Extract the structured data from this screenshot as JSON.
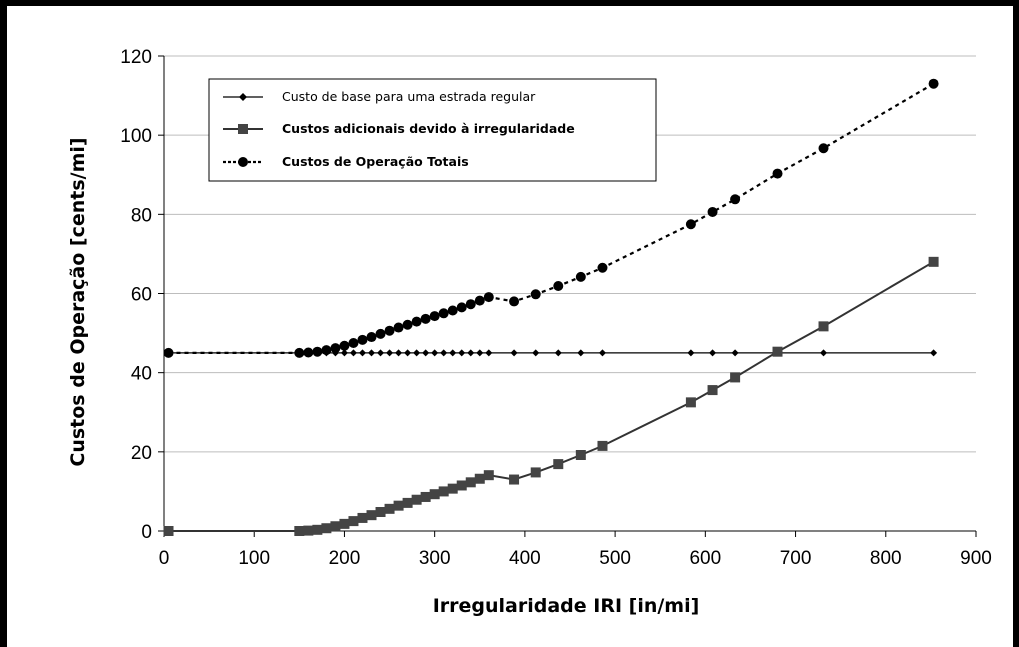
{
  "chart_data": {
    "type": "line",
    "xlabel": "Irregularidade IRI [in/mi]",
    "ylabel": "Custos de Operação [cents/mi]",
    "xlim": [
      0,
      900
    ],
    "ylim": [
      0,
      120
    ],
    "xticks": [
      "0",
      "100",
      "200",
      "300",
      "400",
      "500",
      "600",
      "700",
      "800",
      "900"
    ],
    "yticks": [
      "0",
      "20",
      "40",
      "60",
      "80",
      "100",
      "120"
    ],
    "grid": "horizontal",
    "legend_position": "top-left",
    "series": [
      {
        "name": "Custo de base para uma estrada regular",
        "marker": "diamond",
        "line": "solid",
        "color": "#000000",
        "points": [
          [
            5,
            45
          ],
          [
            150,
            45
          ],
          [
            160,
            45
          ],
          [
            170,
            45
          ],
          [
            180,
            45
          ],
          [
            190,
            45
          ],
          [
            200,
            45
          ],
          [
            210,
            45
          ],
          [
            220,
            45
          ],
          [
            230,
            45
          ],
          [
            240,
            45
          ],
          [
            250,
            45
          ],
          [
            260,
            45
          ],
          [
            270,
            45
          ],
          [
            280,
            45
          ],
          [
            290,
            45
          ],
          [
            300,
            45
          ],
          [
            310,
            45
          ],
          [
            320,
            45
          ],
          [
            330,
            45
          ],
          [
            340,
            45
          ],
          [
            350,
            45
          ],
          [
            360,
            45
          ],
          [
            388,
            45
          ],
          [
            412,
            45
          ],
          [
            437,
            45
          ],
          [
            462,
            45
          ],
          [
            486,
            45
          ],
          [
            584,
            45
          ],
          [
            608,
            45
          ],
          [
            633,
            45
          ],
          [
            680,
            45
          ],
          [
            731,
            45
          ],
          [
            853,
            45
          ]
        ]
      },
      {
        "name": "Custos adicionais devido à irregularidade",
        "marker": "square",
        "line": "solid",
        "color": "#333333",
        "points": [
          [
            5,
            0
          ],
          [
            150,
            0
          ],
          [
            160,
            0.1
          ],
          [
            170,
            0.3
          ],
          [
            180,
            0.7
          ],
          [
            190,
            1.2
          ],
          [
            200,
            1.8
          ],
          [
            210,
            2.5
          ],
          [
            220,
            3.3
          ],
          [
            230,
            4.0
          ],
          [
            240,
            4.8
          ],
          [
            250,
            5.6
          ],
          [
            260,
            6.4
          ],
          [
            270,
            7.1
          ],
          [
            280,
            7.9
          ],
          [
            290,
            8.6
          ],
          [
            300,
            9.3
          ],
          [
            310,
            10.0
          ],
          [
            320,
            10.7
          ],
          [
            330,
            11.5
          ],
          [
            340,
            12.3
          ],
          [
            350,
            13.2
          ],
          [
            360,
            14.1
          ],
          [
            388,
            13.0
          ],
          [
            412,
            14.8
          ],
          [
            437,
            16.9
          ],
          [
            462,
            19.2
          ],
          [
            486,
            21.5
          ],
          [
            584,
            32.5
          ],
          [
            608,
            35.6
          ],
          [
            633,
            38.8
          ],
          [
            680,
            45.3
          ],
          [
            731,
            51.7
          ],
          [
            853,
            68.0
          ]
        ]
      },
      {
        "name": "Custos de Operação Totais",
        "marker": "circle",
        "line": "dotted",
        "color": "#000000",
        "points": [
          [
            5,
            45
          ],
          [
            150,
            45
          ],
          [
            160,
            45.1
          ],
          [
            170,
            45.3
          ],
          [
            180,
            45.7
          ],
          [
            190,
            46.2
          ],
          [
            200,
            46.8
          ],
          [
            210,
            47.5
          ],
          [
            220,
            48.3
          ],
          [
            230,
            49.0
          ],
          [
            240,
            49.8
          ],
          [
            250,
            50.6
          ],
          [
            260,
            51.4
          ],
          [
            270,
            52.1
          ],
          [
            280,
            52.9
          ],
          [
            290,
            53.6
          ],
          [
            300,
            54.3
          ],
          [
            310,
            55.0
          ],
          [
            320,
            55.7
          ],
          [
            330,
            56.5
          ],
          [
            340,
            57.3
          ],
          [
            350,
            58.2
          ],
          [
            360,
            59.1
          ],
          [
            388,
            58.0
          ],
          [
            412,
            59.8
          ],
          [
            437,
            61.9
          ],
          [
            462,
            64.2
          ],
          [
            486,
            66.5
          ],
          [
            584,
            77.5
          ],
          [
            608,
            80.6
          ],
          [
            633,
            83.8
          ],
          [
            680,
            90.3
          ],
          [
            731,
            96.7
          ],
          [
            853,
            113.0
          ]
        ]
      }
    ]
  }
}
